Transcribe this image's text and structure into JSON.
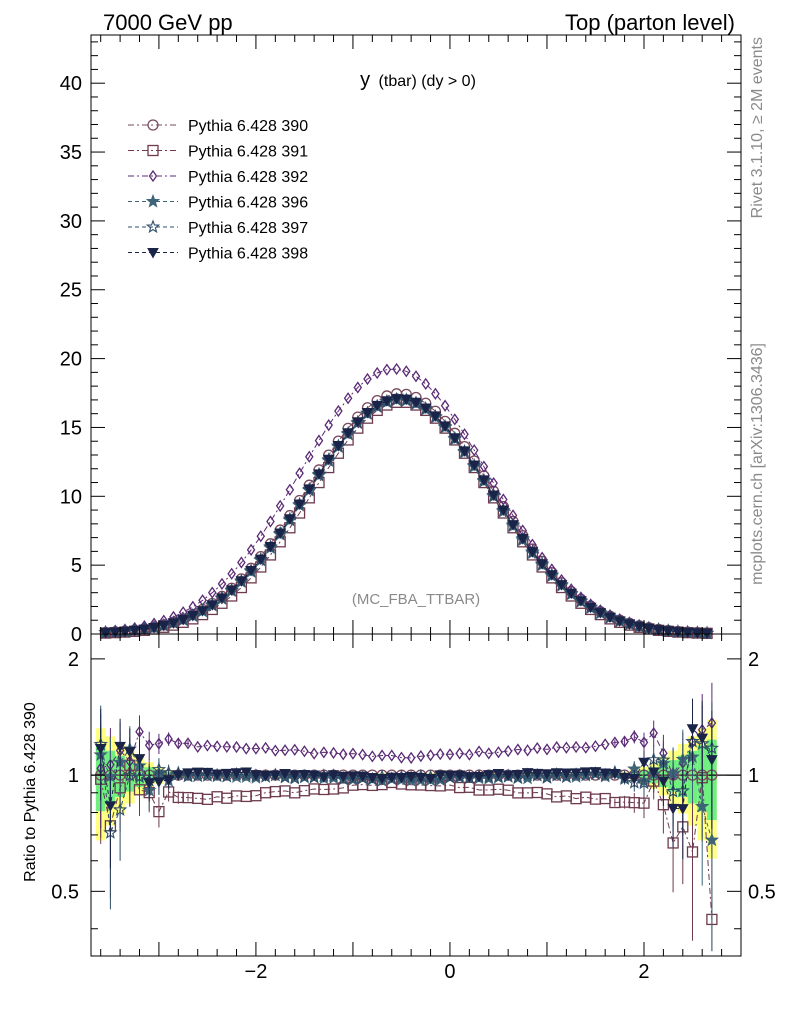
{
  "header": {
    "left": "7000 GeV pp",
    "right": "Top (parton level)"
  },
  "side": {
    "top": "Rivet 3.1.10, ≥ 2M events",
    "bottom": "mcplots.cern.ch [arXiv:1306.3436]"
  },
  "chart_data": {
    "type": "scatter",
    "title_main": "y",
    "title_sub": "(tbar) (dy > 0)",
    "annotation": "(MC_FBA_TTBAR)",
    "xlim": [
      -3.7,
      3.0
    ],
    "x_ticks": [
      -2,
      0,
      2
    ],
    "x_tick_labels": [
      "−2",
      "0",
      "2"
    ],
    "main_panel": {
      "ylim": [
        0,
        43.5
      ],
      "y_ticks": [
        0,
        5,
        10,
        15,
        20,
        25,
        30,
        35,
        40
      ],
      "y_tick_labels": [
        "0",
        "5",
        "10",
        "15",
        "20",
        "25",
        "30",
        "35",
        "40"
      ],
      "legend_position": "top-left"
    },
    "ratio_panel": {
      "ylabel": "Ratio to Pythia 6.428 390",
      "ylim": [
        0.34,
        2.32
      ],
      "y_ticks": [
        0.5,
        1,
        2
      ],
      "y_tick_labels": [
        "0.5",
        "1",
        "2"
      ]
    },
    "series": [
      {
        "name": "Pythia 6.428 390",
        "color": "#7a4a5e",
        "marker": "circle",
        "dash": "6,3,2,3",
        "peak": 17.45,
        "mean": -0.52,
        "sigma": 0.95
      },
      {
        "name": "Pythia 6.428 391",
        "color": "#6e3a4e",
        "marker": "square",
        "dash": "6,3,2,3",
        "peak": 16.85,
        "mean": -0.5,
        "sigma": 0.92
      },
      {
        "name": "Pythia 6.428 392",
        "color": "#5a2a74",
        "marker": "diamond",
        "dash": "6,3,2,3",
        "peak": 19.25,
        "mean": -0.58,
        "sigma": 0.97
      },
      {
        "name": "Pythia 6.428 396",
        "color": "#3e6478",
        "marker": "star",
        "dash": "4,3",
        "peak": 17.0,
        "mean": -0.52,
        "sigma": 0.94
      },
      {
        "name": "Pythia 6.428 397",
        "color": "#2e4e68",
        "marker": "star-open",
        "dash": "4,3",
        "peak": 17.05,
        "mean": -0.52,
        "sigma": 0.945
      },
      {
        "name": "Pythia 6.428 398",
        "color": "#1a2448",
        "marker": "triangle-down",
        "dash": "4,3",
        "peak": 17.1,
        "mean": -0.52,
        "sigma": 0.945
      }
    ],
    "ratio": {
      "x_range": [
        -3.6,
        2.7
      ],
      "bin_width": 0.1,
      "ratio_391": {
        "center": 0.955,
        "edge": 0.86
      },
      "ratio_392": {
        "center": 1.11,
        "edge": 1.2
      },
      "ratio_396": {
        "center": 0.975,
        "edge": 1.0
      },
      "ratio_397": {
        "center": 0.98,
        "edge": 1.0
      },
      "ratio_398": {
        "center": 0.985,
        "edge": 1.02
      },
      "band_yellow": "#ffff80",
      "band_green": "#70ef80"
    }
  }
}
